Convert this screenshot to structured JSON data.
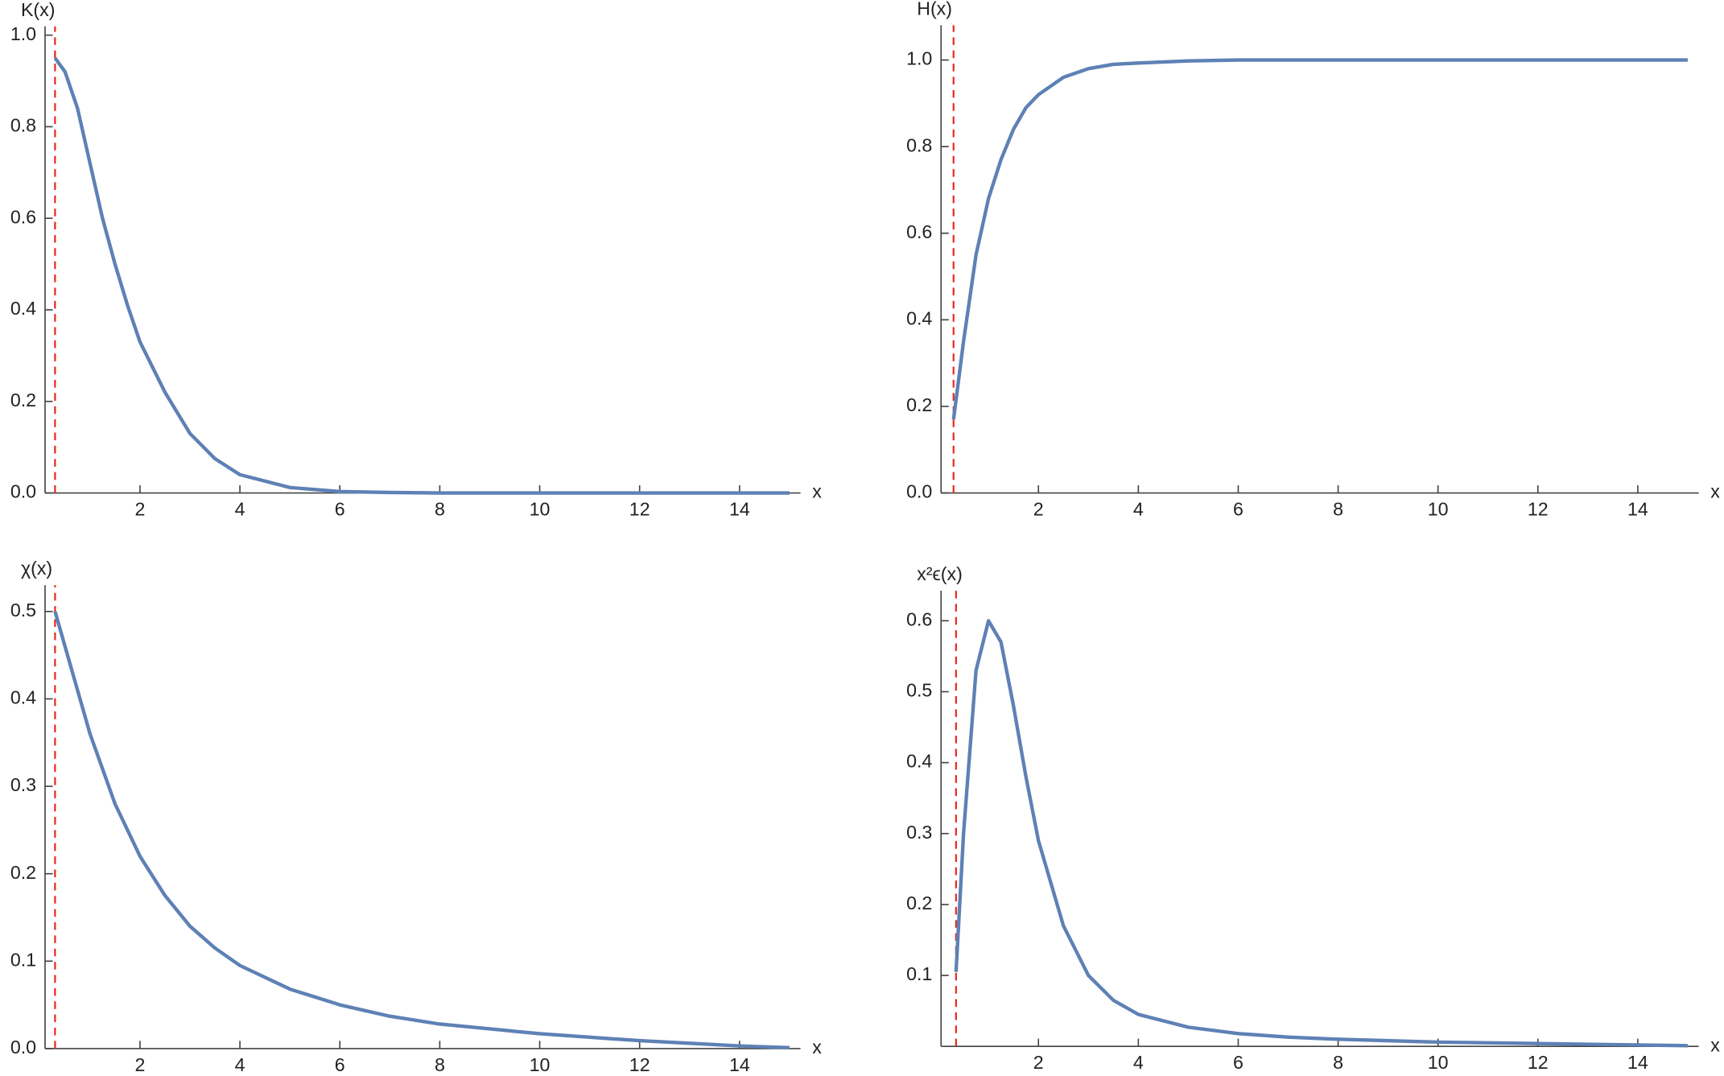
{
  "chart_data": [
    {
      "type": "line",
      "y_label": "K(x)",
      "x_label": "x",
      "xlim": [
        0.1,
        15
      ],
      "ylim": [
        0,
        1.0
      ],
      "xticks": [
        2,
        4,
        6,
        8,
        10,
        12,
        14
      ],
      "yticks": [
        {
          "value": 0,
          "label": "0.0"
        },
        0.2,
        0.4,
        0.6,
        0.8,
        {
          "value": 1,
          "label": "1.0"
        }
      ],
      "reference_x": 0.3,
      "reference_color": "#e8261e",
      "x": [
        0.3,
        0.5,
        0.75,
        1,
        1.25,
        1.5,
        1.75,
        2,
        2.5,
        3,
        3.5,
        4,
        5,
        6,
        7,
        8,
        10,
        12,
        14,
        15
      ],
      "series": [
        {
          "color": "#5e81b5",
          "values": [
            0.95,
            0.92,
            0.84,
            0.72,
            0.6,
            0.5,
            0.41,
            0.33,
            0.22,
            0.13,
            0.075,
            0.04,
            0.012,
            0.003,
            0.001,
            0,
            0,
            0,
            0,
            0
          ]
        }
      ]
    },
    {
      "type": "line",
      "y_label": "H(x)",
      "x_label": "x",
      "xlim": [
        0.05,
        15
      ],
      "ylim": [
        0,
        1.06
      ],
      "xticks": [
        2,
        4,
        6,
        8,
        10,
        12,
        14
      ],
      "yticks": [
        {
          "value": 0,
          "label": "0.0"
        },
        0.2,
        0.4,
        0.6,
        0.8,
        {
          "value": 1,
          "label": "1.0"
        }
      ],
      "reference_x": 0.3,
      "reference_color": "#e8261e",
      "x": [
        0.3,
        0.5,
        0.75,
        1,
        1.25,
        1.5,
        1.75,
        2,
        2.5,
        3,
        3.5,
        4,
        5,
        6,
        7,
        8,
        10,
        12,
        14,
        15
      ],
      "series": [
        {
          "color": "#5e81b5",
          "values": [
            0.17,
            0.35,
            0.55,
            0.68,
            0.77,
            0.84,
            0.89,
            0.92,
            0.96,
            0.98,
            0.99,
            0.993,
            0.998,
            1,
            1,
            1,
            1,
            1,
            1,
            1
          ]
        }
      ]
    },
    {
      "type": "line",
      "y_label": "χ(x)",
      "x_label": "x",
      "xlim": [
        0.1,
        15
      ],
      "ylim": [
        0,
        0.52
      ],
      "xticks": [
        2,
        4,
        6,
        8,
        10,
        12,
        14
      ],
      "yticks": [
        {
          "value": 0,
          "label": "0.0"
        },
        0.1,
        0.2,
        0.3,
        0.4,
        0.5
      ],
      "reference_x": 0.3,
      "reference_color": "#e8261e",
      "x": [
        0.3,
        0.5,
        0.75,
        1,
        1.25,
        1.5,
        1.75,
        2,
        2.5,
        3,
        3.5,
        4,
        5,
        6,
        7,
        8,
        10,
        12,
        14,
        15
      ],
      "series": [
        {
          "color": "#5e81b5",
          "values": [
            0.5,
            0.46,
            0.41,
            0.36,
            0.32,
            0.28,
            0.25,
            0.22,
            0.175,
            0.14,
            0.115,
            0.095,
            0.068,
            0.05,
            0.037,
            0.028,
            0.017,
            0.009,
            0.003,
            0.001
          ]
        }
      ]
    },
    {
      "type": "line",
      "y_label": "x²ϵ(x)",
      "x_label": "x",
      "xlim": [
        0.05,
        15
      ],
      "ylim": [
        0,
        0.63
      ],
      "xticks": [
        2,
        4,
        6,
        8,
        10,
        12,
        14
      ],
      "yticks": [
        0.1,
        0.2,
        0.3,
        0.4,
        0.5,
        0.6
      ],
      "reference_x": 0.35,
      "reference_color": "#e8261e",
      "x": [
        0.35,
        0.5,
        0.75,
        1,
        1.25,
        1.5,
        1.75,
        2,
        2.5,
        3,
        3.5,
        4,
        5,
        6,
        7,
        8,
        10,
        12,
        14,
        15
      ],
      "series": [
        {
          "color": "#5e81b5",
          "values": [
            0.105,
            0.3,
            0.53,
            0.6,
            0.57,
            0.48,
            0.38,
            0.29,
            0.17,
            0.1,
            0.065,
            0.045,
            0.027,
            0.018,
            0.013,
            0.01,
            0.006,
            0.004,
            0.002,
            0.001
          ]
        }
      ]
    }
  ]
}
